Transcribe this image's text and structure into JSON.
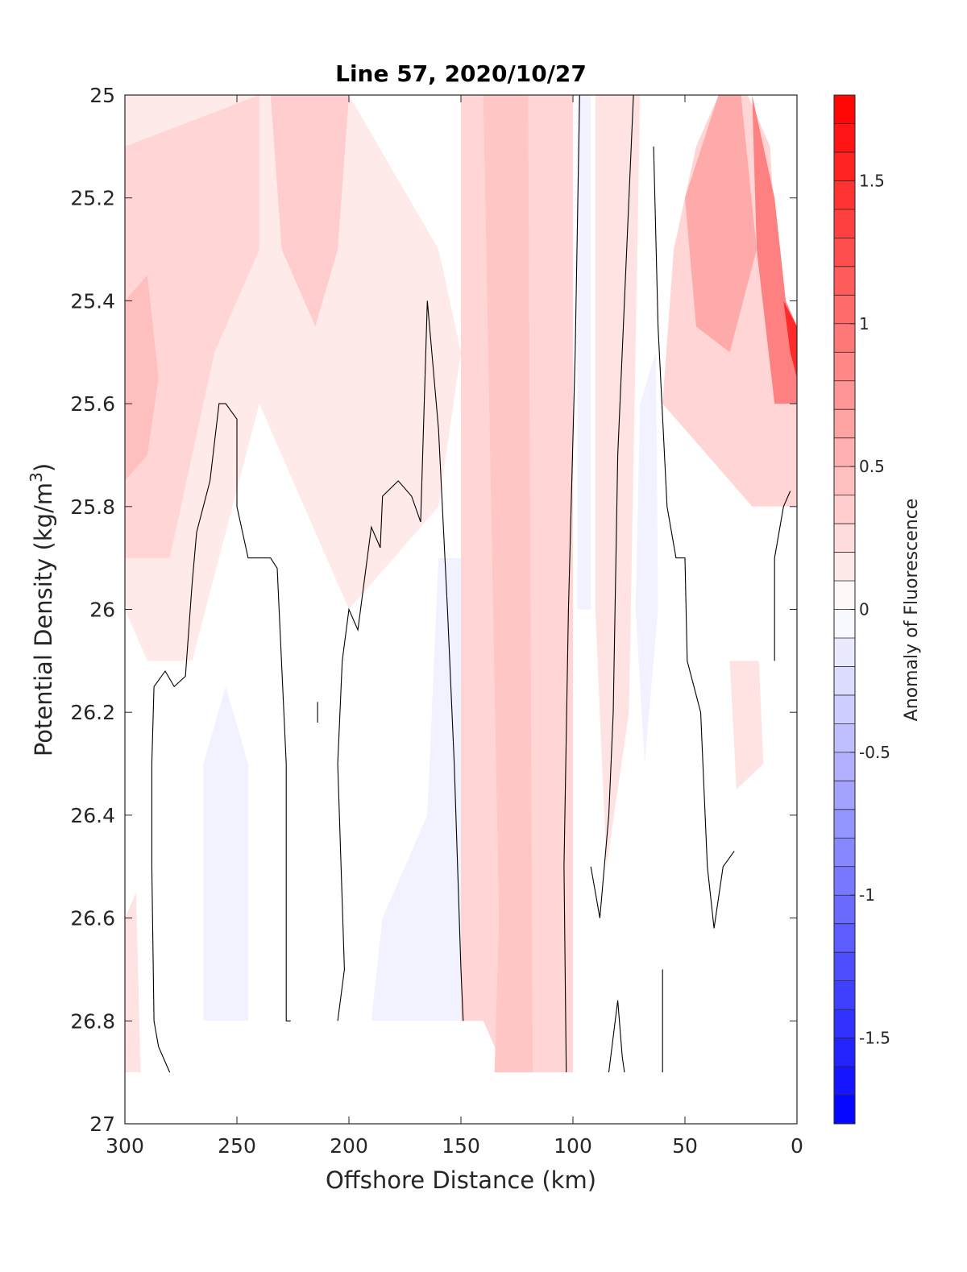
{
  "chart_data": {
    "type": "heatmap",
    "title": "Line 57, 2020/10/27",
    "xlabel": "Offshore Distance (km)",
    "ylabel_prefix": "Potential Density (kg/m",
    "ylabel_sup": "3",
    "ylabel_suffix": ")",
    "xlim": [
      300,
      0
    ],
    "ylim": [
      25,
      27
    ],
    "x_reversed": true,
    "y_reversed": true,
    "xticks": [
      300,
      250,
      200,
      150,
      100,
      50,
      0
    ],
    "xtick_labels": [
      "300",
      "250",
      "200",
      "150",
      "100",
      "50",
      "0"
    ],
    "yticks": [
      25,
      25.2,
      25.4,
      25.6,
      25.8,
      26,
      26.2,
      26.4,
      26.6,
      26.8,
      27
    ],
    "ytick_labels": [
      "25",
      "25.2",
      "25.4",
      "25.6",
      "25.8",
      "26",
      "26.2",
      "26.4",
      "26.6",
      "26.8",
      "27"
    ],
    "colorbar": {
      "label": "Anomaly of Fluorescence",
      "range": [
        -1.8,
        1.8
      ],
      "ticks": [
        -1.5,
        -1,
        -0.5,
        0,
        0.5,
        1,
        1.5
      ],
      "tick_labels": [
        "-1.5",
        "-1",
        "-0.5",
        "0",
        "0.5",
        "1",
        "1.5"
      ],
      "neg_color": "#0000ff",
      "pos_color": "#ff0000",
      "zero_color": "#ffffff",
      "levels": 36
    },
    "anomaly_regions": [
      {
        "value": 0.15,
        "points": [
          [
            300,
            25
          ],
          [
            200,
            25
          ],
          [
            160,
            25.3
          ],
          [
            150,
            25.5
          ],
          [
            160,
            25.8
          ],
          [
            200,
            26.0
          ],
          [
            240,
            25.6
          ],
          [
            270,
            26.1
          ],
          [
            290,
            26.1
          ],
          [
            300,
            26.0
          ]
        ]
      },
      {
        "value": 0.3,
        "points": [
          [
            300,
            25.1
          ],
          [
            240,
            25.0
          ],
          [
            240,
            25.3
          ],
          [
            260,
            25.5
          ],
          [
            280,
            25.9
          ],
          [
            300,
            25.9
          ]
        ]
      },
      {
        "value": 0.35,
        "points": [
          [
            235,
            25.0
          ],
          [
            200,
            25.0
          ],
          [
            205,
            25.3
          ],
          [
            215,
            25.45
          ],
          [
            230,
            25.3
          ]
        ]
      },
      {
        "value": 0.45,
        "points": [
          [
            300,
            25.4
          ],
          [
            290,
            25.35
          ],
          [
            285,
            25.55
          ],
          [
            290,
            25.7
          ],
          [
            300,
            25.75
          ]
        ]
      },
      {
        "value": 0.3,
        "points": [
          [
            150,
            25.0
          ],
          [
            100,
            25.0
          ],
          [
            100,
            26.9
          ],
          [
            130,
            26.9
          ],
          [
            140,
            26.8
          ],
          [
            150,
            26.8
          ]
        ]
      },
      {
        "value": 0.4,
        "points": [
          [
            140,
            25.0
          ],
          [
            120,
            25.0
          ],
          [
            118,
            26.9
          ],
          [
            135,
            26.9
          ],
          [
            133,
            26.6
          ]
        ]
      },
      {
        "value": 0.2,
        "points": [
          [
            90,
            25.0
          ],
          [
            70,
            25.0
          ],
          [
            75,
            26.2
          ],
          [
            85,
            26.5
          ],
          [
            90,
            26.0
          ]
        ]
      },
      {
        "value": 0.3,
        "points": [
          [
            55,
            25.3
          ],
          [
            45,
            25.1
          ],
          [
            35,
            25.0
          ],
          [
            22,
            25.0
          ],
          [
            12,
            25.1
          ],
          [
            8,
            25.4
          ],
          [
            0,
            25.5
          ],
          [
            0,
            25.8
          ],
          [
            20,
            25.8
          ],
          [
            40,
            25.7
          ],
          [
            60,
            25.6
          ]
        ]
      },
      {
        "value": 0.6,
        "points": [
          [
            50,
            25.2
          ],
          [
            35,
            25.0
          ],
          [
            25,
            25.0
          ],
          [
            18,
            25.3
          ],
          [
            30,
            25.5
          ],
          [
            45,
            25.45
          ]
        ]
      },
      {
        "value": 0.9,
        "points": [
          [
            20,
            25.0
          ],
          [
            10,
            25.2
          ],
          [
            5,
            25.4
          ],
          [
            0,
            25.45
          ],
          [
            0,
            25.6
          ],
          [
            10,
            25.6
          ],
          [
            18,
            25.3
          ]
        ]
      },
      {
        "value": 1.5,
        "points": [
          [
            6,
            25.4
          ],
          [
            0,
            25.45
          ],
          [
            0,
            25.55
          ],
          [
            3,
            25.5
          ]
        ]
      },
      {
        "value": 0.2,
        "points": [
          [
            30,
            26.1
          ],
          [
            17,
            26.1
          ],
          [
            15,
            26.3
          ],
          [
            27,
            26.35
          ]
        ]
      },
      {
        "value": 0.2,
        "points": [
          [
            300,
            26.6
          ],
          [
            295,
            26.55
          ],
          [
            293,
            26.9
          ],
          [
            300,
            26.9
          ]
        ]
      },
      {
        "value": -0.1,
        "points": [
          [
            265,
            26.3
          ],
          [
            255,
            26.15
          ],
          [
            245,
            26.3
          ],
          [
            245,
            26.8
          ],
          [
            265,
            26.8
          ]
        ]
      },
      {
        "value": -0.1,
        "points": [
          [
            160,
            25.9
          ],
          [
            150,
            25.9
          ],
          [
            150,
            26.8
          ],
          [
            190,
            26.8
          ],
          [
            185,
            26.6
          ],
          [
            165,
            26.4
          ]
        ]
      },
      {
        "value": -0.1,
        "points": [
          [
            98,
            25.0
          ],
          [
            92,
            25.0
          ],
          [
            92,
            26.0
          ],
          [
            98,
            26.0
          ]
        ]
      },
      {
        "value": -0.1,
        "points": [
          [
            70,
            25.6
          ],
          [
            63,
            25.5
          ],
          [
            62,
            26.0
          ],
          [
            68,
            26.3
          ],
          [
            72,
            26.0
          ]
        ]
      }
    ],
    "contour_lines": [
      [
        [
          280,
          26.9
        ],
        [
          285,
          26.85
        ],
        [
          287,
          26.8
        ],
        [
          288,
          26.5
        ],
        [
          288,
          26.3
        ],
        [
          287,
          26.15
        ],
        [
          282,
          26.12
        ],
        [
          278,
          26.15
        ],
        [
          273,
          26.13
        ],
        [
          270,
          25.95
        ],
        [
          268,
          25.85
        ],
        [
          262,
          25.75
        ],
        [
          258,
          25.6
        ],
        [
          255,
          25.6
        ],
        [
          250,
          25.63
        ],
        [
          250,
          25.8
        ],
        [
          245,
          25.9
        ],
        [
          235,
          25.9
        ],
        [
          232,
          25.92
        ],
        [
          228,
          26.3
        ],
        [
          228,
          26.6
        ],
        [
          228,
          26.8
        ],
        [
          226,
          26.8
        ]
      ],
      [
        [
          214,
          26.18
        ],
        [
          214,
          26.22
        ]
      ],
      [
        [
          205,
          26.8
        ],
        [
          202,
          26.7
        ],
        [
          205,
          26.3
        ],
        [
          203,
          26.1
        ],
        [
          200,
          26.0
        ],
        [
          196,
          26.04
        ],
        [
          190,
          25.84
        ],
        [
          186,
          25.88
        ],
        [
          185,
          25.78
        ],
        [
          178,
          25.75
        ],
        [
          172,
          25.78
        ],
        [
          168,
          25.83
        ],
        [
          165,
          25.4
        ],
        [
          160,
          25.65
        ],
        [
          156,
          26.0
        ],
        [
          153,
          26.3
        ],
        [
          150,
          26.7
        ],
        [
          149,
          26.8
        ]
      ],
      [
        [
          103,
          26.9
        ],
        [
          104,
          26.5
        ],
        [
          102,
          26.0
        ],
        [
          99,
          25.5
        ],
        [
          97,
          25.0
        ]
      ],
      [
        [
          92,
          26.5
        ],
        [
          90,
          26.55
        ],
        [
          88,
          26.6
        ],
        [
          84,
          26.4
        ],
        [
          82,
          26.2
        ],
        [
          80,
          25.7
        ],
        [
          76,
          25.3
        ],
        [
          73,
          25.0
        ]
      ],
      [
        [
          84,
          26.9
        ],
        [
          80,
          26.76
        ],
        [
          78,
          26.87
        ],
        [
          77,
          26.9
        ]
      ],
      [
        [
          60,
          26.7
        ],
        [
          60,
          26.9
        ]
      ],
      [
        [
          64,
          25.1
        ],
        [
          62,
          25.45
        ],
        [
          58,
          25.8
        ],
        [
          54,
          25.9
        ],
        [
          50,
          25.9
        ],
        [
          49,
          26.1
        ],
        [
          43,
          26.2
        ],
        [
          40,
          26.5
        ],
        [
          37,
          26.62
        ],
        [
          33,
          26.5
        ],
        [
          28,
          26.47
        ]
      ],
      [
        [
          10,
          26.1
        ],
        [
          10,
          26.0
        ],
        [
          10,
          25.9
        ],
        [
          6,
          25.8
        ],
        [
          3,
          25.77
        ]
      ]
    ]
  }
}
